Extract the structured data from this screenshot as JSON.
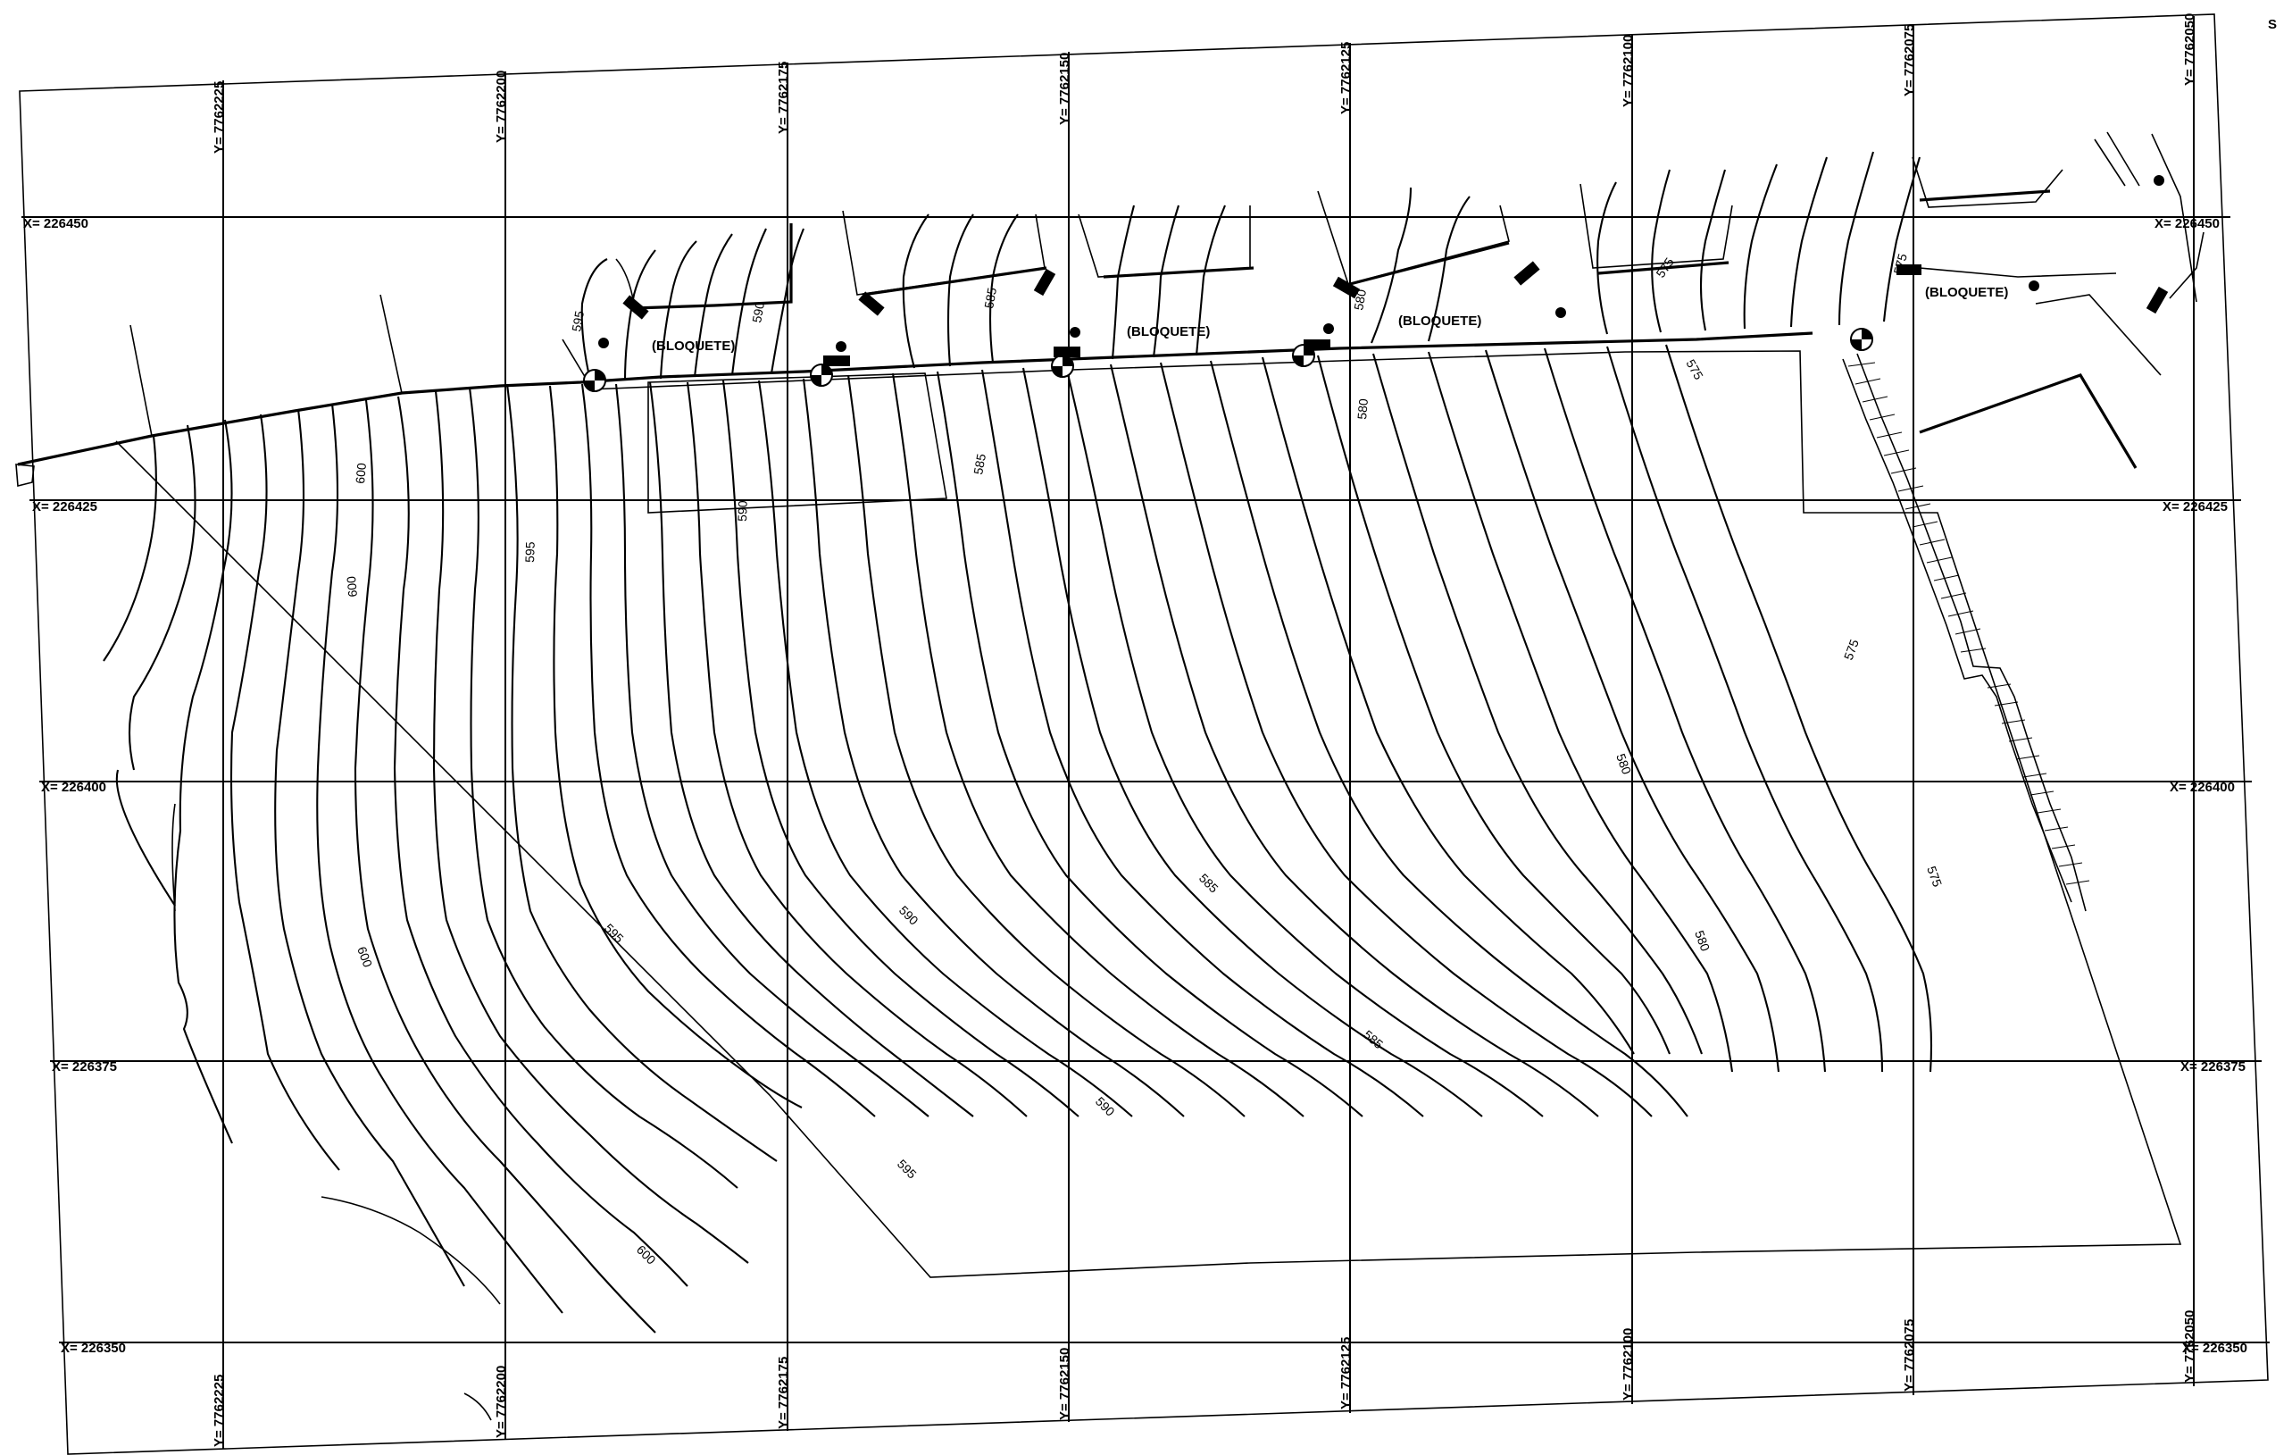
{
  "grid": {
    "x_labels": [
      "X= 226450",
      "X= 226425",
      "X= 226400",
      "X= 226375",
      "X= 226350"
    ],
    "y_labels": [
      "Y= 7762225",
      "Y= 7762200",
      "Y= 7762175",
      "Y= 7762150",
      "Y= 7762125",
      "Y= 7762100",
      "Y= 7762075",
      "Y= 7762050"
    ]
  },
  "notes": {
    "bloquete": "(BLOQUETE)",
    "corner_mark": "S"
  },
  "contour_labels": [
    "595",
    "590",
    "585",
    "580",
    "575",
    "600",
    "595",
    "590",
    "585",
    "580",
    "575",
    "570"
  ],
  "contour_values": {
    "l575": "575",
    "l580": "580",
    "l585": "585",
    "l590": "590",
    "l595": "595",
    "l600": "600"
  },
  "colors": {
    "ink": "#000000",
    "paper": "#ffffff"
  }
}
